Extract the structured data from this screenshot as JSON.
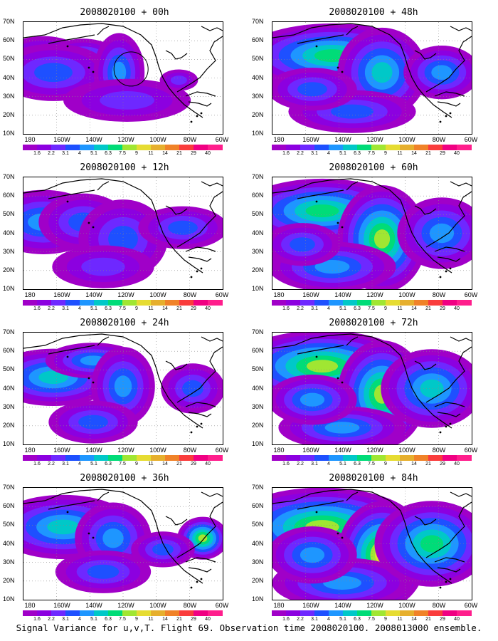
{
  "panels": [
    {
      "title": "2008020100 + 00h",
      "lead": "00h"
    },
    {
      "title": "2008020100 + 12h",
      "lead": "12h"
    },
    {
      "title": "2008020100 + 24h",
      "lead": "24h"
    },
    {
      "title": "2008020100 + 36h",
      "lead": "36h"
    },
    {
      "title": "2008020100 + 48h",
      "lead": "48h"
    },
    {
      "title": "2008020100 + 60h",
      "lead": "60h"
    },
    {
      "title": "2008020100 + 72h",
      "lead": "72h"
    },
    {
      "title": "2008020100 + 84h",
      "lead": "84h"
    }
  ],
  "y_ticks": [
    "10N",
    "20N",
    "30N",
    "40N",
    "50N",
    "60N",
    "70N"
  ],
  "x_ticks": [
    "180",
    "160W",
    "140W",
    "120W",
    "100W",
    "80W",
    "60W"
  ],
  "colorbar": {
    "labels": [
      "1.6",
      "2.2",
      "3.1",
      "4",
      "5.1",
      "6.3",
      "7.5",
      "9",
      "11",
      "14",
      "21",
      "29",
      "40"
    ],
    "colors": [
      "#a000c8",
      "#8c00e0",
      "#6e28ff",
      "#1e50ff",
      "#1e96ff",
      "#00c8c8",
      "#00dc78",
      "#a0e632",
      "#e6dc32",
      "#e6af2d",
      "#f08228",
      "#fa3c3c",
      "#f00082",
      "#ff1e8c"
    ]
  },
  "caption": "Signal Variance for u,v,T. Flight 69. Observation time 2008020100. 2008013000 ensemble.",
  "icons": {
    "land_outline": "coastline-outline",
    "target_circle": "target-circle-icon"
  }
}
